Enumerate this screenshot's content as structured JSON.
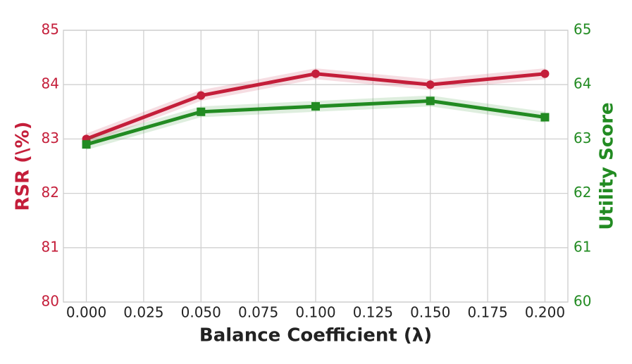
{
  "chart_data": {
    "type": "line",
    "x_label": "Balance Coefficient (λ)",
    "y_label": "RSR (\\%)",
    "y2_label": "Utility Score",
    "x": [
      0,
      0.05,
      0.1,
      0.15,
      0.2
    ],
    "series": [
      {
        "name": "RSR",
        "color": "#c41e3a",
        "marker": "circle",
        "values": [
          83.0,
          83.8,
          84.2,
          84.0,
          84.2
        ],
        "errors": [
          0.1,
          0.1,
          0.1,
          0.1,
          0.1
        ]
      },
      {
        "name": "Utility Score",
        "color": "#228b22",
        "marker": "square",
        "axis": "y2",
        "values": [
          62.9,
          63.5,
          63.6,
          63.7,
          63.4
        ],
        "errors": [
          0.1,
          0.1,
          0.1,
          0.1,
          0.1
        ]
      }
    ],
    "xlim": [
      -0.01,
      0.21
    ],
    "xticks": [
      {
        "value": 0,
        "label": "0.000"
      },
      {
        "value": 0.025,
        "label": "0.025"
      },
      {
        "value": 0.05,
        "label": "0.050"
      },
      {
        "value": 0.075,
        "label": "0.075"
      },
      {
        "value": 0.1,
        "label": "0.100"
      },
      {
        "value": 0.125,
        "label": "0.125"
      },
      {
        "value": 0.15,
        "label": "0.150"
      },
      {
        "value": 0.175,
        "label": "0.175"
      },
      {
        "value": 0.2,
        "label": "0.200"
      }
    ],
    "ylim": [
      80,
      85
    ],
    "yticks": [
      80,
      81,
      82,
      83,
      84,
      85
    ],
    "y2lim": [
      60,
      65
    ],
    "y2ticks": [
      60,
      61,
      62,
      63,
      64,
      65
    ],
    "grid": true
  }
}
